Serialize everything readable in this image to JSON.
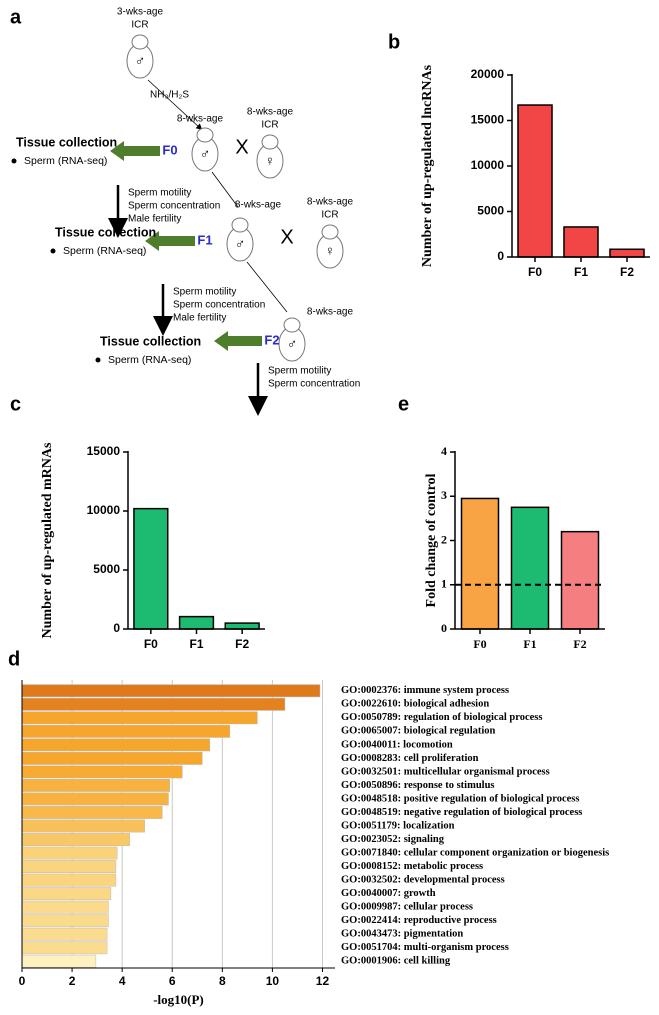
{
  "diagram": {
    "panel_label": "a",
    "founder": {
      "age": "3-wks-age",
      "strain": "ICR",
      "sex": "♂"
    },
    "exposure": "NH₃/H₂S",
    "generations": [
      {
        "name": "F0",
        "age": "8-wks-age",
        "sex": "♂",
        "cross": "X",
        "mate": {
          "age": "8-wks-age",
          "strain": "ICR",
          "sex": "♀"
        },
        "collection": {
          "title": "Tissue collection",
          "sample": "Sperm (RNA-seq)"
        },
        "outcomes": [
          "Sperm motility",
          "Sperm concentration",
          "Male fertility"
        ]
      },
      {
        "name": "F1",
        "age": "8-wks-age",
        "sex": "♂",
        "cross": "X",
        "mate": {
          "age": "8-wks-age",
          "strain": "ICR",
          "sex": "♀"
        },
        "collection": {
          "title": "Tissue collection",
          "sample": "Sperm (RNA-seq)"
        },
        "outcomes": [
          "Sperm motility",
          "Sperm concentration",
          "Male fertility"
        ]
      },
      {
        "name": "F2",
        "age": "8-wks-age",
        "sex": "♂",
        "collection": {
          "title": "Tissue collection",
          "sample": "Sperm (RNA-seq)"
        },
        "outcomes": [
          "Sperm motility",
          "Sperm concentration"
        ]
      }
    ]
  },
  "chart_data": [
    {
      "type": "bar",
      "panel_label": "b",
      "y_label": "Number of up-regulated lncRNAs",
      "categories": [
        "F0",
        "F1",
        "F2"
      ],
      "values": [
        16700,
        3300,
        850
      ],
      "color": "#f24545",
      "ylim": [
        0,
        20000
      ],
      "yticks": [
        0,
        5000,
        10000,
        15000,
        20000
      ]
    },
    {
      "type": "bar",
      "panel_label": "c",
      "y_label": "Number of up-regulated mRNAs",
      "categories": [
        "F0",
        "F1",
        "F2"
      ],
      "values": [
        10200,
        1050,
        500
      ],
      "color": "#1dbb72",
      "ylim": [
        0,
        15000
      ],
      "yticks": [
        0,
        5000,
        10000,
        15000
      ]
    },
    {
      "type": "bar",
      "panel_label": "e",
      "y_label": "Fold change of control",
      "categories": [
        "F0",
        "F1",
        "F2"
      ],
      "values": [
        2.95,
        2.75,
        2.2
      ],
      "colors": [
        "#f8a444",
        "#1dbb72",
        "#f57f80"
      ],
      "reference_line": 1,
      "ylim": [
        0,
        4
      ],
      "yticks": [
        0,
        1,
        2,
        3,
        4
      ]
    },
    {
      "type": "barh",
      "panel_label": "d",
      "x_label": "-log10(P)",
      "categories": [
        "GO:0002376: immune system process",
        "GO:0022610: biological adhesion",
        "GO:0050789: regulation of biological process",
        "GO:0065007: biological regulation",
        "GO:0040011: locomotion",
        "GO:0008283: cell proliferation",
        "GO:0032501: multicellular organismal process",
        "GO:0050896: response to stimulus",
        "GO:0048518: positive regulation of biological process",
        "GO:0048519: negative regulation of biological process",
        "GO:0051179: localization",
        "GO:0023052: signaling",
        "GO:0071840: cellular component organization or biogenesis",
        "GO:0008152: metabolic process",
        "GO:0032502: developmental process",
        "GO:0040007: growth",
        "GO:0009987: cellular process",
        "GO:0022414: reproductive process",
        "GO:0043473: pigmentation",
        "GO:0051704: multi-organism process",
        "GO:0001906: cell killing"
      ],
      "values": [
        11.9,
        10.5,
        9.4,
        8.3,
        7.5,
        7.2,
        6.4,
        5.9,
        5.85,
        5.6,
        4.9,
        4.3,
        3.8,
        3.75,
        3.75,
        3.55,
        3.45,
        3.45,
        3.4,
        3.4,
        2.95
      ],
      "colors": [
        "#df7a1c",
        "#e3821f",
        "#f6a62a",
        "#f6a62a",
        "#f6a62a",
        "#f6a62a",
        "#f7ab33",
        "#f7b23f",
        "#f7b23f",
        "#f8b84a",
        "#f8c05a",
        "#f9c866",
        "#fad27a",
        "#fad47e",
        "#fad47e",
        "#fbd886",
        "#fbda8b",
        "#fbda8b",
        "#fbdc8f",
        "#fbdc8f",
        "#fdf1c0"
      ],
      "xlim": [
        0,
        12.5
      ],
      "xticks": [
        0,
        2,
        4,
        6,
        8,
        10,
        12
      ],
      "grid": true
    }
  ]
}
